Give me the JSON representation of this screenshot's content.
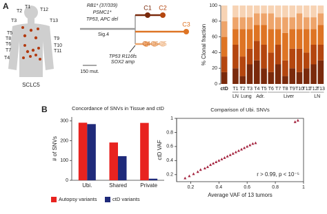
{
  "panels": [
    "A",
    "B"
  ],
  "body": {
    "labels": [
      "T1",
      "T2",
      "T3",
      "T4",
      "T5",
      "T6",
      "T7",
      "T8",
      "T9",
      "T10",
      "T11",
      "T12",
      "T13"
    ],
    "caption": "SCLC5"
  },
  "tree": {
    "mutations": [
      "RB1* (37/339)",
      "PSMC1*",
      "TP53, APC del"
    ],
    "signature": "Sig.4",
    "branch_event": [
      "TP53 R116fs",
      "SOX2 amp"
    ],
    "clones": [
      "C1",
      "C2",
      "C3",
      "C4",
      "C6",
      "C5"
    ],
    "scale": "150 mut."
  },
  "chart_data": [
    {
      "type": "stacked_bar",
      "ylabel": "% Clonal fraction",
      "categories": [
        "ctD",
        "T1",
        "T2",
        "T3",
        "T4",
        "T5",
        "T6",
        "T7",
        "T8",
        "T9",
        "T10",
        "T11",
        "T12",
        "T13"
      ],
      "groups": [
        "LN",
        "Lung",
        "Adr.",
        "Liver",
        "LN"
      ],
      "ylim": [
        0,
        100
      ],
      "yticks": [
        0,
        20,
        40,
        60,
        80,
        100
      ],
      "series": [
        {
          "color": "#7a2a0c",
          "values": [
            15,
            20,
            10,
            25,
            30,
            20,
            15,
            25,
            10,
            20,
            15,
            20,
            25,
            30
          ]
        },
        {
          "color": "#b4460f",
          "values": [
            20,
            30,
            25,
            20,
            25,
            30,
            25,
            25,
            20,
            25,
            30,
            20,
            25,
            20
          ]
        },
        {
          "color": "#de7424",
          "values": [
            25,
            20,
            35,
            25,
            20,
            25,
            30,
            20,
            35,
            25,
            25,
            30,
            20,
            25
          ]
        },
        {
          "color": "#eea46a",
          "values": [
            20,
            15,
            15,
            15,
            15,
            15,
            20,
            15,
            20,
            15,
            20,
            15,
            15,
            15
          ]
        },
        {
          "color": "#f7d3b4",
          "values": [
            20,
            15,
            15,
            15,
            10,
            10,
            10,
            15,
            15,
            15,
            10,
            15,
            15,
            10
          ]
        }
      ]
    },
    {
      "type": "bar",
      "title": "Concordance of SNVs in Tissue and ctD",
      "ylabel": "# of SNVs",
      "categories": [
        "Ubi.",
        "Shared",
        "Private"
      ],
      "ylim": [
        0,
        320
      ],
      "yticks": [
        0,
        100,
        200,
        300
      ],
      "series": [
        {
          "name": "Autopsy variants",
          "color": "#e8231f",
          "values": [
            291,
            191,
            290
          ]
        },
        {
          "name": "ctD variants",
          "color": "#1f2a7a",
          "values": [
            284,
            122,
            8
          ]
        }
      ]
    },
    {
      "type": "scatter",
      "title": "Comparison of Ubi. SNVs",
      "xlabel": "Average VAF of 13 tumors",
      "ylabel": "ctD VAF",
      "annotation": "r > 0.99, p < 10⁻⁵",
      "color": "#a3203c",
      "xlim": [
        0.1,
        1.0
      ],
      "ylim": [
        0.1,
        1.0
      ],
      "xticks": [
        0.2,
        0.4,
        0.6,
        0.8,
        1
      ],
      "yticks": [
        0.2,
        0.4,
        0.6,
        0.8,
        1
      ],
      "x": [
        0.16,
        0.19,
        0.22,
        0.25,
        0.27,
        0.3,
        0.32,
        0.34,
        0.36,
        0.38,
        0.4,
        0.42,
        0.44,
        0.46,
        0.48,
        0.5,
        0.52,
        0.54,
        0.56,
        0.58,
        0.6,
        0.62,
        0.64,
        0.66,
        0.94,
        0.96
      ],
      "y": [
        0.15,
        0.18,
        0.21,
        0.24,
        0.27,
        0.29,
        0.31,
        0.34,
        0.36,
        0.38,
        0.4,
        0.42,
        0.44,
        0.46,
        0.48,
        0.5,
        0.52,
        0.54,
        0.56,
        0.58,
        0.6,
        0.62,
        0.64,
        0.65,
        0.95,
        0.97
      ]
    }
  ]
}
